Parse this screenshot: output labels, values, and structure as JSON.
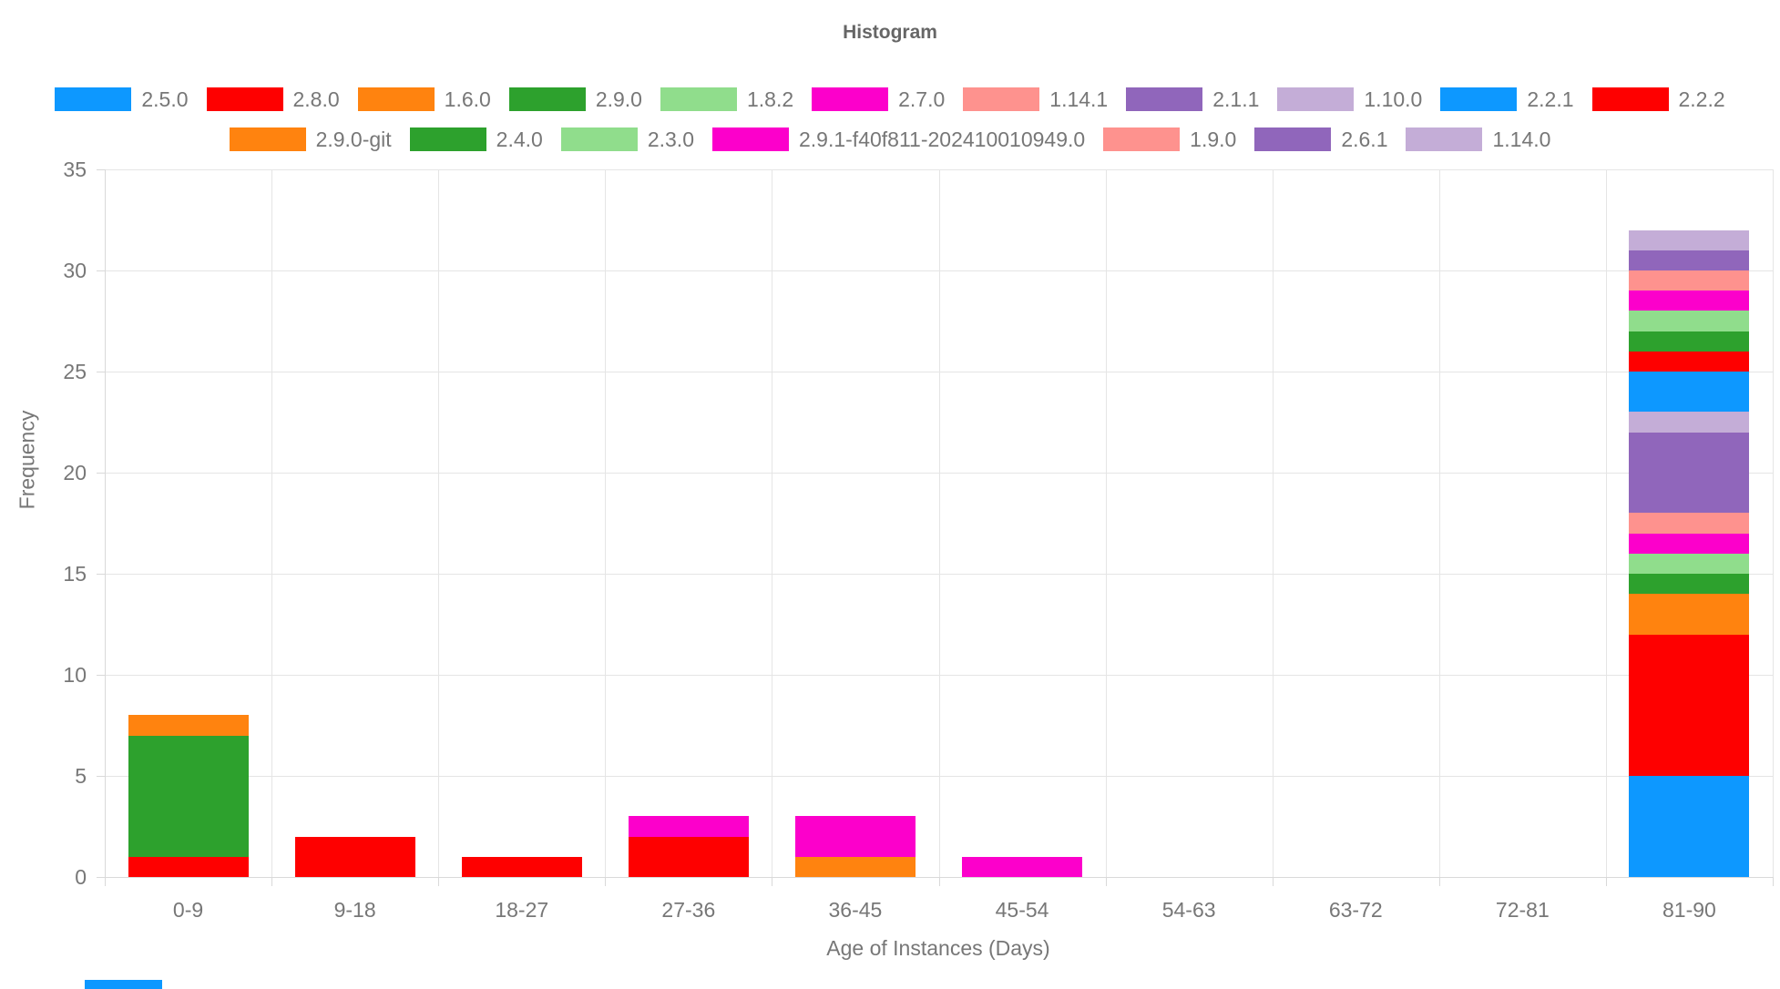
{
  "title": "Histogram",
  "axes": {
    "x_label": "Age of Instances (Days)",
    "y_label": "Frequency"
  },
  "legend": {
    "rows": [
      11,
      7
    ],
    "position": "top"
  },
  "colors": {
    "title_text": "#666666",
    "axis_text": "#777777",
    "grid_line": "#e5e5e5",
    "axis_line": "#d9d9d9",
    "background": "#ffffff",
    "cropped_element": "#0d98ff"
  },
  "chart_data": {
    "type": "bar",
    "stacked": true,
    "title": "Histogram",
    "xlabel": "Age of Instances (Days)",
    "ylabel": "Frequency",
    "ylim": [
      0,
      35
    ],
    "yticks": [
      0,
      5,
      10,
      15,
      20,
      25,
      30,
      35
    ],
    "grid": true,
    "legend_position": "top",
    "categories": [
      "0-9",
      "9-18",
      "18-27",
      "27-36",
      "36-45",
      "45-54",
      "54-63",
      "63-72",
      "72-81",
      "81-90"
    ],
    "series": [
      {
        "name": "2.5.0",
        "color": "#0d98ff",
        "values": [
          0,
          0,
          0,
          0,
          0,
          0,
          0,
          0,
          0,
          5
        ]
      },
      {
        "name": "2.8.0",
        "color": "#fe0000",
        "values": [
          1,
          2,
          1,
          2,
          0,
          0,
          0,
          0,
          0,
          7
        ]
      },
      {
        "name": "1.6.0",
        "color": "#ff830f",
        "values": [
          0,
          0,
          0,
          0,
          1,
          0,
          0,
          0,
          0,
          2
        ]
      },
      {
        "name": "2.9.0",
        "color": "#2da12d",
        "values": [
          6,
          0,
          0,
          0,
          0,
          0,
          0,
          0,
          0,
          1
        ]
      },
      {
        "name": "1.8.2",
        "color": "#90dd8c",
        "values": [
          0,
          0,
          0,
          0,
          0,
          0,
          0,
          0,
          0,
          1
        ]
      },
      {
        "name": "2.7.0",
        "color": "#fc00cb",
        "values": [
          0,
          0,
          0,
          1,
          2,
          1,
          0,
          0,
          0,
          1
        ]
      },
      {
        "name": "1.14.1",
        "color": "#fe928e",
        "values": [
          0,
          0,
          0,
          0,
          0,
          0,
          0,
          0,
          0,
          1
        ]
      },
      {
        "name": "2.1.1",
        "color": "#9066bb",
        "values": [
          0,
          0,
          0,
          0,
          0,
          0,
          0,
          0,
          0,
          4
        ]
      },
      {
        "name": "1.10.0",
        "color": "#c4add7",
        "values": [
          0,
          0,
          0,
          0,
          0,
          0,
          0,
          0,
          0,
          1
        ]
      },
      {
        "name": "2.2.1",
        "color": "#0d98ff",
        "values": [
          0,
          0,
          0,
          0,
          0,
          0,
          0,
          0,
          0,
          2
        ]
      },
      {
        "name": "2.2.2",
        "color": "#fe0000",
        "values": [
          0,
          0,
          0,
          0,
          0,
          0,
          0,
          0,
          0,
          1
        ]
      },
      {
        "name": "2.9.0-git",
        "color": "#ff830f",
        "values": [
          1,
          0,
          0,
          0,
          0,
          0,
          0,
          0,
          0,
          0
        ]
      },
      {
        "name": "2.4.0",
        "color": "#2da12d",
        "values": [
          0,
          0,
          0,
          0,
          0,
          0,
          0,
          0,
          0,
          1
        ]
      },
      {
        "name": "2.3.0",
        "color": "#90dd8c",
        "values": [
          0,
          0,
          0,
          0,
          0,
          0,
          0,
          0,
          0,
          1
        ]
      },
      {
        "name": "2.9.1-f40f811-202410010949.0",
        "color": "#fc00cb",
        "values": [
          0,
          0,
          0,
          0,
          0,
          0,
          0,
          0,
          0,
          1
        ]
      },
      {
        "name": "1.9.0",
        "color": "#fe928e",
        "values": [
          0,
          0,
          0,
          0,
          0,
          0,
          0,
          0,
          0,
          1
        ]
      },
      {
        "name": "2.6.1",
        "color": "#9066bb",
        "values": [
          0,
          0,
          0,
          0,
          0,
          0,
          0,
          0,
          0,
          1
        ]
      },
      {
        "name": "1.14.0",
        "color": "#c4add7",
        "values": [
          0,
          0,
          0,
          0,
          0,
          0,
          0,
          0,
          0,
          1
        ]
      }
    ]
  }
}
